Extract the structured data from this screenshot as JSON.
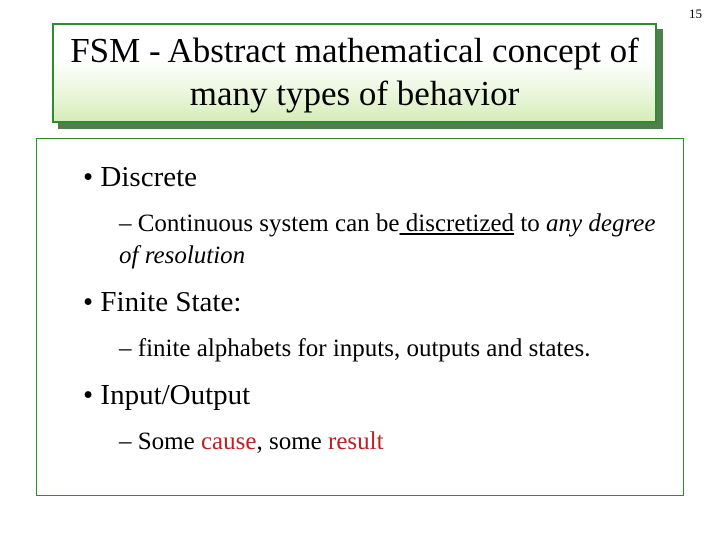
{
  "page_number": "15",
  "title": "FSM - Abstract mathematical concept of many types of behavior",
  "colors": {
    "border_green": "#2e8b2e",
    "shadow_green": "#4f7f4f",
    "gradient_top": "#ffffff",
    "gradient_bottom": "#d4edb8",
    "text": "#000000",
    "red": "#bb2222"
  },
  "typography": {
    "family": "Times New Roman",
    "title_fontsize": 35,
    "l1_fontsize": 29,
    "l2_fontsize": 25
  },
  "bullets": [
    {
      "level": 1,
      "runs": [
        {
          "text": "Discrete"
        }
      ]
    },
    {
      "level": 2,
      "runs": [
        {
          "text": "Continuous system can be"
        },
        {
          "text": " discretized",
          "underline": true
        },
        {
          "text": " to "
        },
        {
          "text": "any degree of resolution",
          "italic": true
        }
      ]
    },
    {
      "level": 1,
      "runs": [
        {
          "text": "Finite State:"
        }
      ]
    },
    {
      "level": 2,
      "runs": [
        {
          "text": "finite alphabets for inputs, outputs and states."
        }
      ]
    },
    {
      "level": 1,
      "runs": [
        {
          "text": "Input/Output"
        }
      ]
    },
    {
      "level": 2,
      "runs": [
        {
          "text": "Some "
        },
        {
          "text": "cause",
          "red": true
        },
        {
          "text": ", some "
        },
        {
          "text": "result",
          "red": true
        }
      ]
    }
  ]
}
